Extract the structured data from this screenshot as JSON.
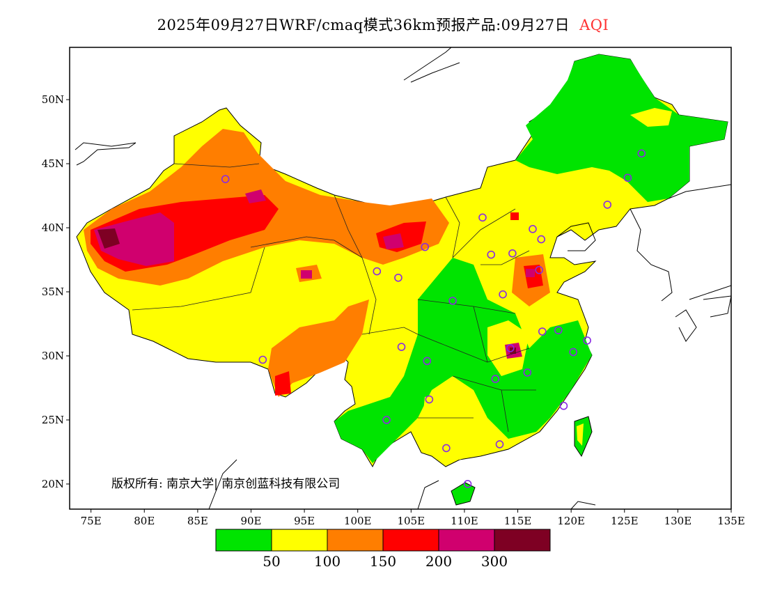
{
  "title": {
    "main": "2025年09月27日WRF/cmaq模式36km预报产品:09月27日",
    "variable": "AQI"
  },
  "map": {
    "lon_range": [
      73,
      135
    ],
    "lat_range": [
      18.04,
      54.08
    ],
    "lon_ticks": [
      75,
      80,
      85,
      90,
      95,
      100,
      105,
      110,
      115,
      120,
      125,
      130,
      135
    ],
    "lon_labels": [
      "75E",
      "80E",
      "85E",
      "90E",
      "95E",
      "100E",
      "105E",
      "110E",
      "115E",
      "120E",
      "125E",
      "130E",
      "135E"
    ],
    "lat_ticks": [
      20,
      25,
      30,
      35,
      40,
      45,
      50
    ],
    "lat_labels": [
      "20N",
      "25N",
      "30N",
      "35N",
      "40N",
      "45N",
      "50N"
    ]
  },
  "credit": "版权所有: 南京大学| 南京创蓝科技有限公司",
  "legend": {
    "colors": [
      "#00e400",
      "#ffff00",
      "#ff7e00",
      "#ff0000",
      "#d0006e",
      "#7e0023"
    ],
    "labels": [
      "50",
      "100",
      "150",
      "200",
      "300"
    ]
  }
}
